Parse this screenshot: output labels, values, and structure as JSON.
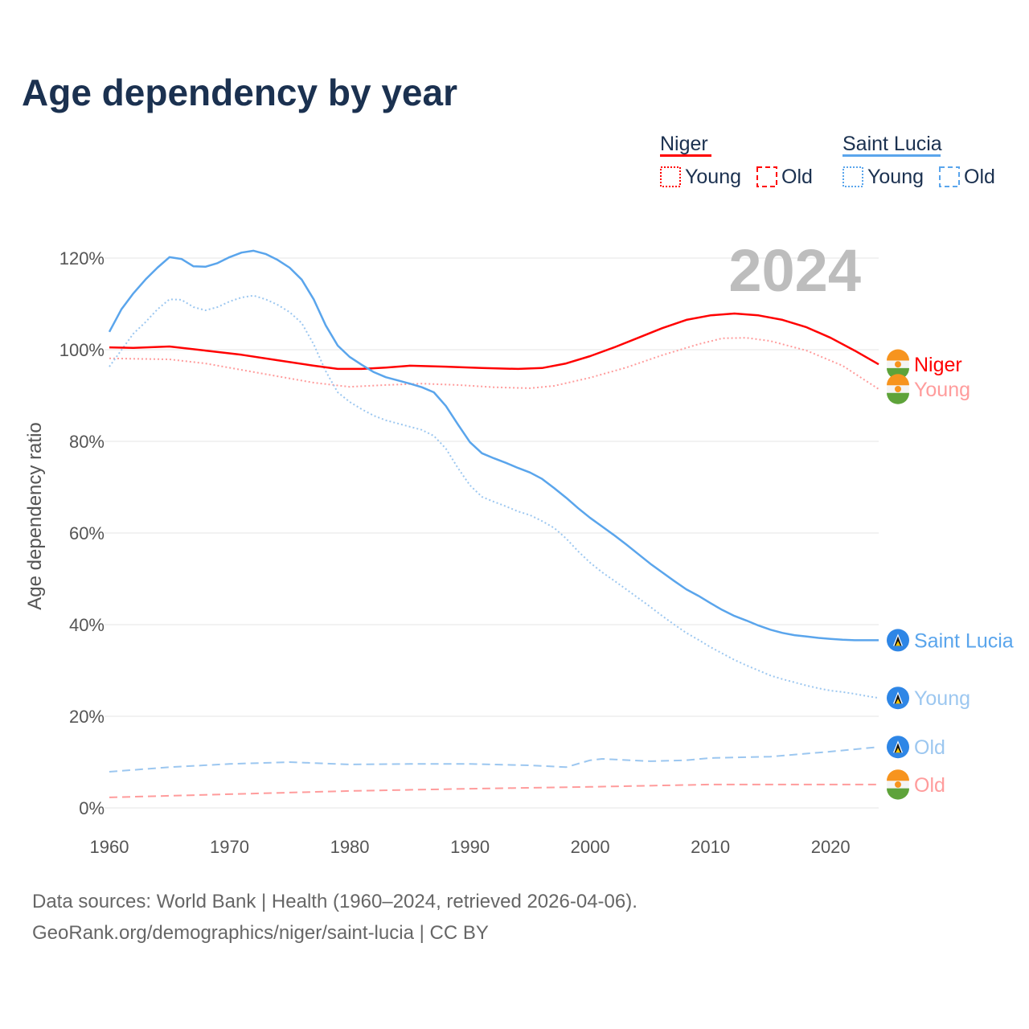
{
  "title": "Age dependency by year",
  "year_badge": "2024",
  "legend": {
    "groups": [
      {
        "name": "Niger",
        "color": "#ff0000",
        "young_label": "Young",
        "old_label": "Old"
      },
      {
        "name": "Saint Lucia",
        "color": "#5aa5ec",
        "young_label": "Young",
        "old_label": "Old"
      }
    ]
  },
  "footer": {
    "line1": "Data sources: World Bank | Health (1960–2024, retrieved 2026-04-06).",
    "line2": "GeoRank.org/demographics/niger/saint-lucia | CC BY"
  },
  "chart_data": {
    "type": "line",
    "title": "Age dependency by year",
    "xlabel": "",
    "ylabel": "Age dependency ratio",
    "xlim": [
      1960,
      2024
    ],
    "ylim": [
      0,
      125
    ],
    "x_ticks": [
      1960,
      1970,
      1980,
      1990,
      2000,
      2010,
      2020
    ],
    "y_ticks": [
      0,
      20,
      40,
      60,
      80,
      100,
      120
    ],
    "y_tick_labels": [
      "0%",
      "20%",
      "40%",
      "60%",
      "80%",
      "100%",
      "120%"
    ],
    "grid": true,
    "legend_position": "top-right",
    "series": [
      {
        "name": "Saint Lucia",
        "end_label": "Saint Lucia",
        "country": "lc",
        "color": "#5aa5ec",
        "style": "solid",
        "x": [
          1960,
          1961,
          1962,
          1963,
          1964,
          1965,
          1966,
          1967,
          1968,
          1969,
          1970,
          1971,
          1972,
          1973,
          1974,
          1975,
          1976,
          1977,
          1978,
          1979,
          1980,
          1981,
          1982,
          1983,
          1984,
          1985,
          1986,
          1987,
          1988,
          1989,
          1990,
          1991,
          1992,
          1993,
          1994,
          1995,
          1996,
          1997,
          1998,
          1999,
          2000,
          2001,
          2002,
          2003,
          2004,
          2005,
          2006,
          2007,
          2008,
          2009,
          2010,
          2011,
          2012,
          2013,
          2014,
          2015,
          2016,
          2017,
          2018,
          2019,
          2020,
          2021,
          2022,
          2023,
          2024
        ],
        "y": [
          103.9,
          108.8,
          112.3,
          115.3,
          117.9,
          120.2,
          119.8,
          118.2,
          118.1,
          118.9,
          120.2,
          121.2,
          121.6,
          120.9,
          119.6,
          117.9,
          115.3,
          111.0,
          105.3,
          100.9,
          98.4,
          96.7,
          95.1,
          94.0,
          93.3,
          92.6,
          91.8,
          90.7,
          87.7,
          83.7,
          79.8,
          77.4,
          76.3,
          75.3,
          74.2,
          73.2,
          71.8,
          69.8,
          67.7,
          65.4,
          63.3,
          61.4,
          59.5,
          57.5,
          55.4,
          53.3,
          51.4,
          49.5,
          47.7,
          46.3,
          44.7,
          43.2,
          41.9,
          40.9,
          39.8,
          38.9,
          38.2,
          37.7,
          37.4,
          37.1,
          36.9,
          36.7,
          36.6,
          36.6,
          36.6
        ]
      },
      {
        "name": "Saint Lucia Young",
        "end_label": "Young",
        "country": "lc",
        "color": "#9cc7f0",
        "style": "dotted",
        "x": [
          1960,
          1962,
          1963,
          1964,
          1965,
          1966,
          1967,
          1968,
          1969,
          1970,
          1971,
          1972,
          1973,
          1974,
          1975,
          1976,
          1977,
          1978,
          1979,
          1980,
          1981,
          1982,
          1983,
          1984,
          1985,
          1986,
          1987,
          1988,
          1989,
          1990,
          1991,
          1992,
          1993,
          1994,
          1995,
          1996,
          1997,
          1998,
          1999,
          2000,
          2001,
          2002,
          2003,
          2004,
          2005,
          2006,
          2007,
          2008,
          2009,
          2010,
          2011,
          2012,
          2013,
          2014,
          2015,
          2016,
          2017,
          2018,
          2019,
          2020,
          2021,
          2022,
          2023,
          2024
        ],
        "y": [
          96.3,
          103.5,
          106.0,
          108.8,
          111.0,
          110.9,
          109.3,
          108.6,
          109.3,
          110.5,
          111.4,
          111.8,
          111.0,
          109.8,
          108.2,
          105.8,
          101.2,
          95.3,
          90.7,
          88.6,
          87.0,
          85.6,
          84.6,
          83.9,
          83.2,
          82.5,
          81.2,
          78.4,
          74.2,
          70.4,
          67.9,
          66.8,
          65.8,
          64.7,
          63.9,
          62.6,
          61.1,
          58.8,
          56.0,
          53.5,
          51.4,
          49.6,
          47.7,
          45.8,
          43.9,
          41.9,
          40.0,
          38.2,
          36.7,
          35.1,
          33.7,
          32.3,
          31.1,
          30.0,
          28.9,
          28.1,
          27.4,
          26.7,
          26.1,
          25.6,
          25.3,
          24.9,
          24.4,
          24.0
        ]
      },
      {
        "name": "Saint Lucia Old",
        "end_label": "Old",
        "country": "lc",
        "color": "#9cc7f0",
        "style": "dashed",
        "x": [
          1960,
          1965,
          1970,
          1975,
          1980,
          1985,
          1990,
          1995,
          1998,
          2000,
          2001,
          2005,
          2008,
          2010,
          2015,
          2020,
          2024
        ],
        "y": [
          7.9,
          8.9,
          9.6,
          10.0,
          9.5,
          9.6,
          9.6,
          9.3,
          8.9,
          10.4,
          10.7,
          10.2,
          10.4,
          10.9,
          11.2,
          12.3,
          13.3
        ]
      },
      {
        "name": "Niger",
        "end_label": "Niger",
        "country": "ne",
        "color": "#ff0000",
        "style": "solid",
        "x": [
          1960,
          1962,
          1965,
          1968,
          1971,
          1974,
          1977,
          1979,
          1981,
          1983,
          1985,
          1988,
          1991,
          1994,
          1996,
          1998,
          2000,
          2002,
          2004,
          2006,
          2008,
          2010,
          2012,
          2014,
          2016,
          2018,
          2020,
          2022,
          2024
        ],
        "y": [
          100.5,
          100.4,
          100.7,
          99.8,
          98.9,
          97.7,
          96.5,
          95.8,
          95.8,
          96.1,
          96.5,
          96.3,
          96.0,
          95.8,
          96.0,
          97.0,
          98.6,
          100.5,
          102.6,
          104.7,
          106.5,
          107.5,
          107.9,
          107.5,
          106.5,
          104.9,
          102.6,
          99.8,
          96.8
        ]
      },
      {
        "name": "Niger Young",
        "end_label": "Young",
        "country": "ne",
        "color": "#ff9c9c",
        "style": "dotted",
        "x": [
          1960,
          1965,
          1968,
          1971,
          1974,
          1977,
          1980,
          1983,
          1986,
          1989,
          1992,
          1995,
          1997,
          2000,
          2003,
          2006,
          2009,
          2011,
          2013,
          2015,
          2018,
          2021,
          2024
        ],
        "y": [
          98.1,
          97.9,
          97.0,
          95.6,
          94.2,
          92.8,
          91.9,
          92.3,
          92.6,
          92.3,
          91.8,
          91.6,
          92.1,
          93.9,
          96.1,
          98.8,
          101.2,
          102.5,
          102.6,
          101.9,
          99.8,
          96.5,
          91.4
        ]
      },
      {
        "name": "Niger Old",
        "end_label": "Old",
        "country": "ne",
        "color": "#ff9c9c",
        "style": "dashed",
        "x": [
          1960,
          1970,
          1980,
          1990,
          2000,
          2010,
          2024
        ],
        "y": [
          2.3,
          3.0,
          3.7,
          4.2,
          4.6,
          5.1,
          5.1
        ]
      }
    ]
  }
}
